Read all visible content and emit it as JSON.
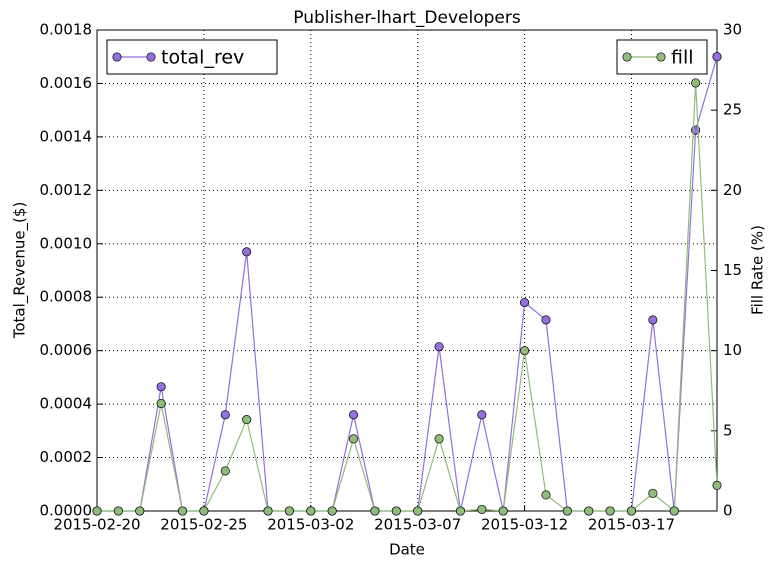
{
  "chart_data": {
    "type": "line",
    "title": "Publisher-lhart_Developers",
    "xlabel": "Date",
    "ylabel": "Total_Revenue_($)",
    "y2label": "Fill Rate (%)",
    "x": [
      "2015-02-20",
      "2015-02-21",
      "2015-02-22",
      "2015-02-23",
      "2015-02-24",
      "2015-02-25",
      "2015-02-26",
      "2015-02-27",
      "2015-02-28",
      "2015-03-01",
      "2015-03-02",
      "2015-03-03",
      "2015-03-04",
      "2015-03-05",
      "2015-03-06",
      "2015-03-07",
      "2015-03-08",
      "2015-03-09",
      "2015-03-10",
      "2015-03-11",
      "2015-03-12",
      "2015-03-13",
      "2015-03-14",
      "2015-03-15",
      "2015-03-16",
      "2015-03-17",
      "2015-03-18",
      "2015-03-19",
      "2015-03-20",
      "2015-03-21"
    ],
    "series": [
      {
        "name": "total_rev",
        "color": "#9370db",
        "axis": "y",
        "values": [
          0,
          0,
          0,
          0.000465,
          0,
          0,
          0.00036,
          0.00097,
          0,
          0,
          0,
          0,
          0.00036,
          0,
          0,
          0,
          0.000615,
          0,
          0.00036,
          0,
          0.00078,
          0.000715,
          0,
          0,
          0,
          0,
          0.000715,
          0,
          0.001425,
          0.0017
        ]
      },
      {
        "name": "fill",
        "color": "#8fbc7a",
        "axis": "y2",
        "values": [
          0,
          0,
          0,
          6.7,
          0,
          0,
          2.5,
          5.7,
          0,
          0,
          0,
          0,
          4.5,
          0,
          0,
          0,
          4.5,
          0,
          0.1,
          0,
          10,
          1,
          0,
          0,
          0,
          0,
          1.1,
          0,
          26.7,
          1.6
        ]
      }
    ],
    "xlim": [
      "2015-02-20",
      "2015-03-21"
    ],
    "xticks": [
      "2015-02-20",
      "2015-02-25",
      "2015-03-02",
      "2015-03-07",
      "2015-03-12",
      "2015-03-17"
    ],
    "ylim": [
      0,
      0.0018
    ],
    "yticks": [
      {
        "value": 0,
        "label": "0.0000"
      },
      {
        "value": 0.0002,
        "label": "0.0002"
      },
      {
        "value": 0.0004,
        "label": "0.0004"
      },
      {
        "value": 0.0006,
        "label": "0.0006"
      },
      {
        "value": 0.0008,
        "label": "0.0008"
      },
      {
        "value": 0.001,
        "label": "0.0010"
      },
      {
        "value": 0.0012,
        "label": "0.0012"
      },
      {
        "value": 0.0014,
        "label": "0.0014"
      },
      {
        "value": 0.0016,
        "label": "0.0016"
      },
      {
        "value": 0.0018,
        "label": "0.0018"
      }
    ],
    "y2lim": [
      0,
      30
    ],
    "y2ticks": [
      0,
      5,
      10,
      15,
      20,
      25,
      30
    ],
    "grid": true
  }
}
